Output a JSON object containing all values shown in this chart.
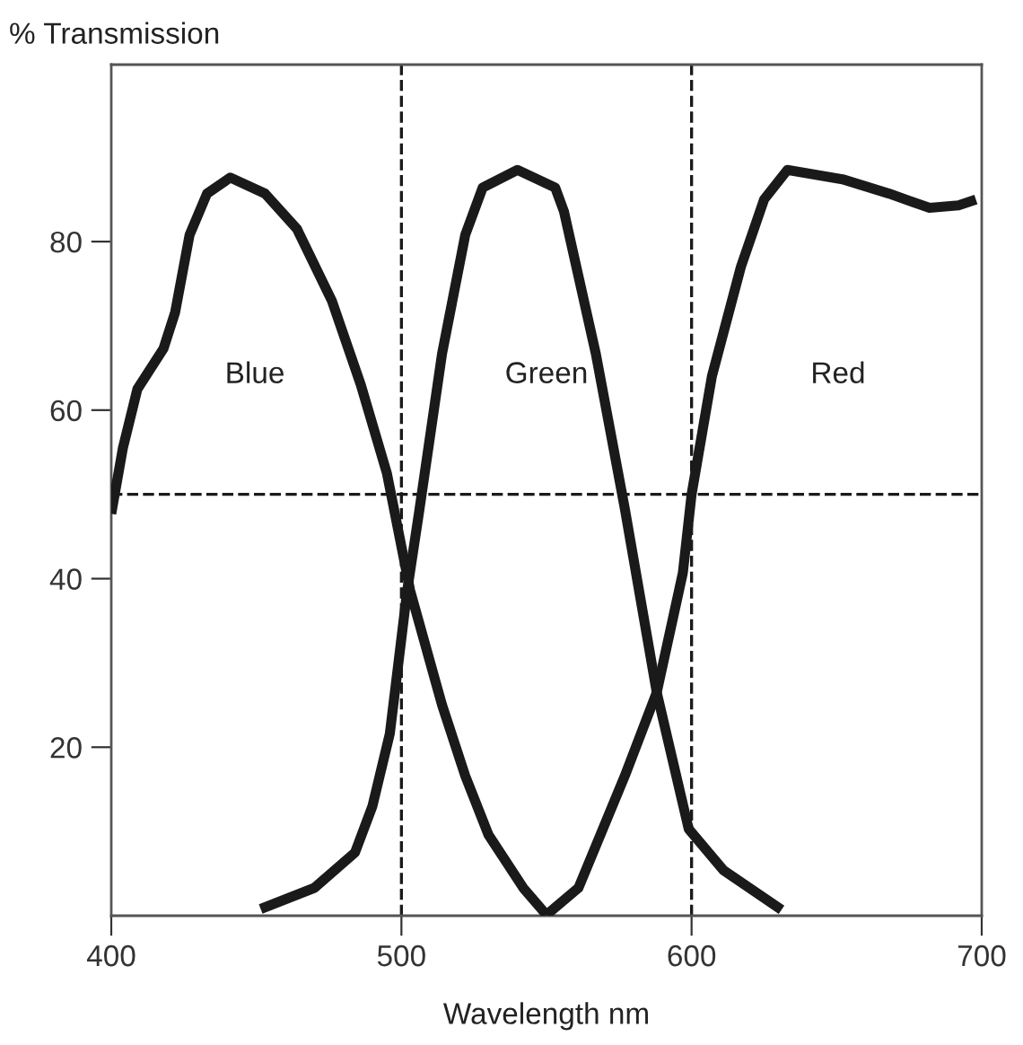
{
  "chart_data": {
    "type": "line",
    "xlabel": "Wavelength nm",
    "ylabel": "% Transmission",
    "xlim": [
      400,
      700
    ],
    "xticks": [
      400,
      500,
      600,
      700
    ],
    "ylim": [
      0,
      101
    ],
    "yticks": [
      20,
      40,
      60,
      80
    ],
    "grid": false,
    "marker": "none",
    "line_style": "solid",
    "annotations": [
      "Blue",
      "Green",
      "Red"
    ],
    "series": [
      {
        "color": "#1a1a1a",
        "x": [
          400,
          404,
          409,
          418,
          422,
          427,
          433,
          441,
          453,
          464,
          476,
          486,
          495,
          503,
          514,
          522,
          530,
          542,
          550
        ],
        "values": [
          47.7,
          55.5,
          62.5,
          67.3,
          71.6,
          80.8,
          85.7,
          87.6,
          85.7,
          81.5,
          73,
          63,
          52.5,
          38.6,
          25,
          16.6,
          9.6,
          3.3,
          0.1
        ]
      },
      {
        "color": "#1a1a1a",
        "x": [
          451.5,
          470,
          484,
          490,
          496,
          502,
          506,
          514,
          522,
          528,
          540,
          553,
          556,
          567,
          577,
          588,
          599,
          611,
          631
        ],
        "values": [
          0.8,
          3.3,
          7.5,
          13,
          21.6,
          38.6,
          47.7,
          66.7,
          80.8,
          86.4,
          88.5,
          86.4,
          83.6,
          66.7,
          48.3,
          26.5,
          10.3,
          5.4,
          0.7
        ]
      },
      {
        "color": "#1a1a1a",
        "x": [
          550,
          561,
          577,
          588,
          597,
          600,
          607,
          617,
          625,
          633,
          652,
          668,
          682,
          692,
          698
        ],
        "values": [
          0.1,
          3.3,
          16.6,
          26.5,
          40.7,
          50,
          64,
          77,
          85,
          88.5,
          87.4,
          85.7,
          84,
          84.3,
          85
        ]
      }
    ],
    "ref_lines": [
      {
        "axis": "y",
        "value": 50,
        "color": "#1a1a1a",
        "line_style": "dashed"
      },
      {
        "axis": "x",
        "value": 500,
        "color": "#1a1a1a",
        "line_style": "dashed"
      },
      {
        "axis": "x",
        "value": 600,
        "color": "#1a1a1a",
        "line_style": "dashed"
      }
    ]
  }
}
